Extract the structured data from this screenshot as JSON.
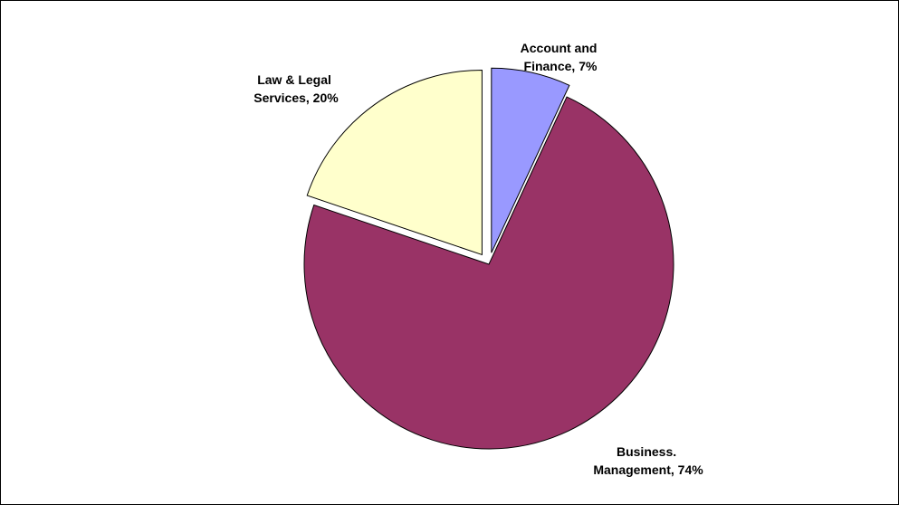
{
  "chart_data": {
    "type": "pie",
    "title": "",
    "legend": "none",
    "slices": [
      {
        "label_line1": "Account and",
        "label_line2": "Finance, 7%",
        "category": "Account and Finance",
        "value": 7,
        "color": "#9999ff",
        "exploded": true
      },
      {
        "label_line1": "Business.",
        "label_line2": "Management, 74%",
        "category": "Business. Management",
        "value": 74,
        "color": "#993366",
        "exploded": false
      },
      {
        "label_line1": "Law & Legal",
        "label_line2": "Services, 20%",
        "category": "Law & Legal Services",
        "value": 20,
        "color": "#ffffcc",
        "exploded": true
      }
    ]
  }
}
